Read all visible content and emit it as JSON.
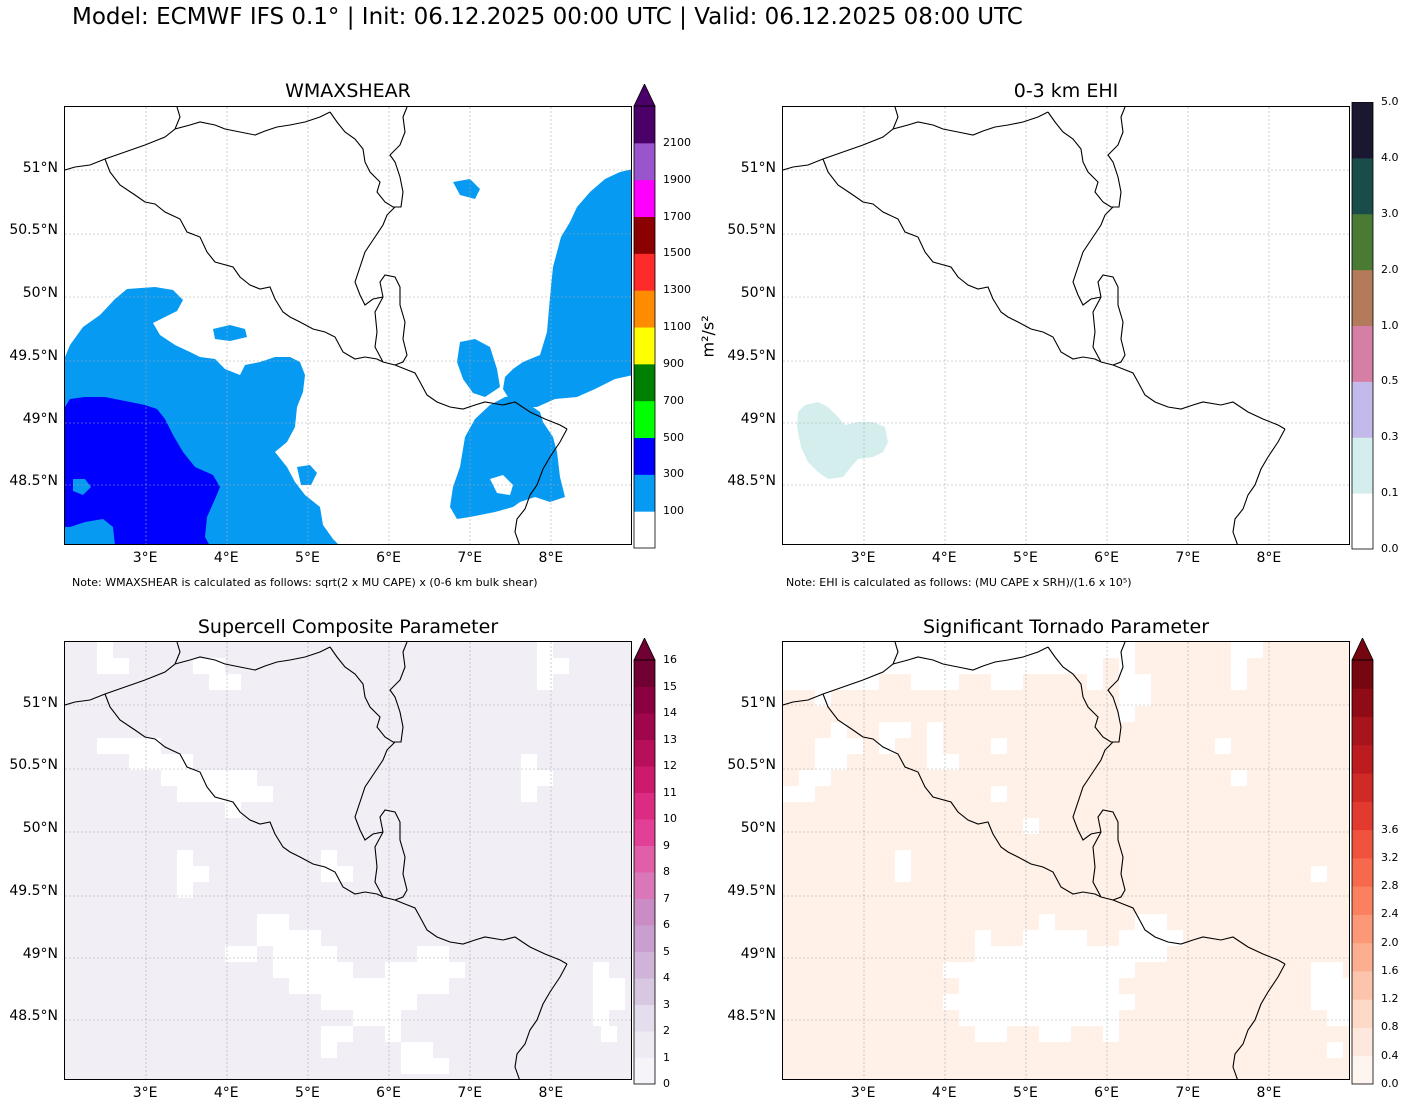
{
  "title": "Model: ECMWF IFS 0.1° | Init: 06.12.2025 00:00 UTC | Valid: 06.12.2025 08:00 UTC",
  "lat_ticks": [
    "51°N",
    "50.5°N",
    "50°N",
    "49.5°N",
    "49°N",
    "48.5°N"
  ],
  "lon_ticks": [
    "3°E",
    "4°E",
    "5°E",
    "6°E",
    "7°E",
    "8°E"
  ],
  "map_extent": {
    "lon": [
      2.0,
      9.0
    ],
    "lat": [
      48.0,
      51.5
    ]
  },
  "panels": [
    {
      "id": "wmaxshear",
      "title": "WMAXSHEAR",
      "note": "Note: WMAXSHEAR is calculated as follows: sqrt(2 x MU CAPE) x (0-6 km bulk shear)",
      "unit": "m²/s²",
      "colorbar": {
        "labels": [
          "100",
          "300",
          "500",
          "700",
          "900",
          "1100",
          "1300",
          "1500",
          "1700",
          "1900",
          "2100"
        ],
        "colors": [
          "#ffffff",
          "#069af3",
          "#0000ff",
          "#00ff00",
          "#008000",
          "#ffff00",
          "#ff8c00",
          "#ff2a2a",
          "#8b0000",
          "#ff00ff",
          "#9955cc",
          "#4b0069"
        ],
        "extend_top": true
      },
      "fill_colors": [
        "#069af3",
        "#0000ff"
      ]
    },
    {
      "id": "ehi",
      "title": "0-3 km EHI",
      "note": "Note: EHI is calculated as follows: (MU CAPE x SRH)/(1.6 x 10⁵)",
      "colorbar": {
        "labels": [
          "0.0",
          "0.1",
          "0.3",
          "0.5",
          "1.0",
          "2.0",
          "3.0",
          "4.0",
          "5.0"
        ],
        "colors": [
          "#ffffff",
          "#d4eeee",
          "#c3b9ea",
          "#d67fa4",
          "#b37a5b",
          "#4b7a35",
          "#1a4d4a",
          "#1a1730"
        ],
        "extend_top": false
      },
      "fill_colors": [
        "#d4eeee"
      ]
    },
    {
      "id": "scp",
      "title": "Supercell Composite Parameter",
      "colorbar": {
        "labels": [
          "0",
          "1",
          "2",
          "3",
          "4",
          "5",
          "6",
          "7",
          "8",
          "9",
          "10",
          "11",
          "12",
          "13",
          "14",
          "15",
          "16"
        ],
        "colors": [
          "#f7f4f9",
          "#efebf5",
          "#e4dded",
          "#d7c7e1",
          "#cfb3d8",
          "#c99fcf",
          "#c98cc5",
          "#d977b8",
          "#e05fa8",
          "#e23f96",
          "#dc2b82",
          "#cc1b6c",
          "#b70f59",
          "#a0064b",
          "#8a0040",
          "#710033"
        ],
        "extend_top": true
      },
      "fill_colors": [
        "#f1eef6"
      ]
    },
    {
      "id": "stp",
      "title": "Significant Tornado Parameter",
      "colorbar": {
        "labels": [
          "0.0",
          "0.4",
          "0.8",
          "1.2",
          "1.6",
          "2.0",
          "2.4",
          "2.8",
          "3.2",
          "3.6"
        ],
        "colors": [
          "#fff5f0",
          "#fee8dd",
          "#fdd9c7",
          "#fcc5ab",
          "#fcae91",
          "#fc9777",
          "#fb8060",
          "#f6694d",
          "#f0533d",
          "#e23a2f",
          "#cf2a26",
          "#bc1b20",
          "#a8141b",
          "#8f0c16",
          "#760711"
        ],
        "extend_top": true
      },
      "fill_colors": [
        "#fff0e8"
      ]
    }
  ]
}
